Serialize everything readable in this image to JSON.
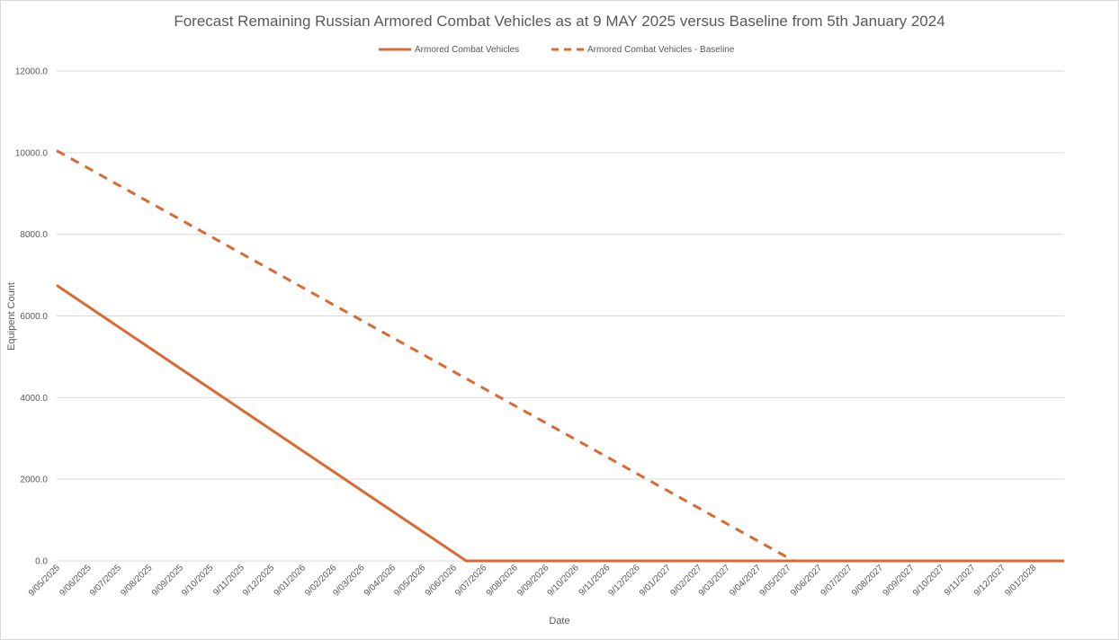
{
  "chart_data": {
    "type": "line",
    "title": "Forecast Remaining Russian Armored Combat Vehicles as at 9 MAY 2025 versus Baseline from 5th January 2024",
    "xlabel": "Date",
    "ylabel": "Equipent Count",
    "ylim": [
      0,
      12000
    ],
    "y_ticks": [
      "0.0",
      "2000.0",
      "4000.0",
      "6000.0",
      "8000.0",
      "10000.0",
      "12000.0"
    ],
    "x_ticks": [
      "9/05/2025",
      "9/06/2025",
      "9/07/2025",
      "9/08/2025",
      "9/09/2025",
      "9/10/2025",
      "9/11/2025",
      "9/12/2025",
      "9/01/2026",
      "9/02/2026",
      "9/03/2026",
      "9/04/2026",
      "9/05/2026",
      "9/06/2026",
      "9/07/2026",
      "9/08/2026",
      "9/09/2026",
      "9/10/2026",
      "9/11/2026",
      "9/12/2026",
      "9/01/2027",
      "9/02/2027",
      "9/03/2027",
      "9/04/2027",
      "9/05/2027",
      "9/06/2027",
      "9/07/2027",
      "9/08/2027",
      "9/09/2027",
      "9/10/2027",
      "9/11/2027",
      "9/12/2027",
      "9/01/2028"
    ],
    "xlim": [
      "9/05/2025",
      "9/02/2028"
    ],
    "legend_position": "top",
    "grid": true,
    "series": [
      {
        "name": "Armored Combat Vehicles",
        "style": "solid",
        "color": "#d86a32",
        "points": [
          {
            "x": "9/05/2025",
            "y": 6750
          },
          {
            "x": "22/06/2026",
            "y": 0
          },
          {
            "x": "9/02/2028",
            "y": 0
          }
        ]
      },
      {
        "name": "Armored Combat Vehicles - Baseline",
        "style": "dashed",
        "color": "#d86a32",
        "points": [
          {
            "x": "9/05/2025",
            "y": 10050
          },
          {
            "x": "15/05/2027",
            "y": 0
          }
        ]
      }
    ]
  }
}
